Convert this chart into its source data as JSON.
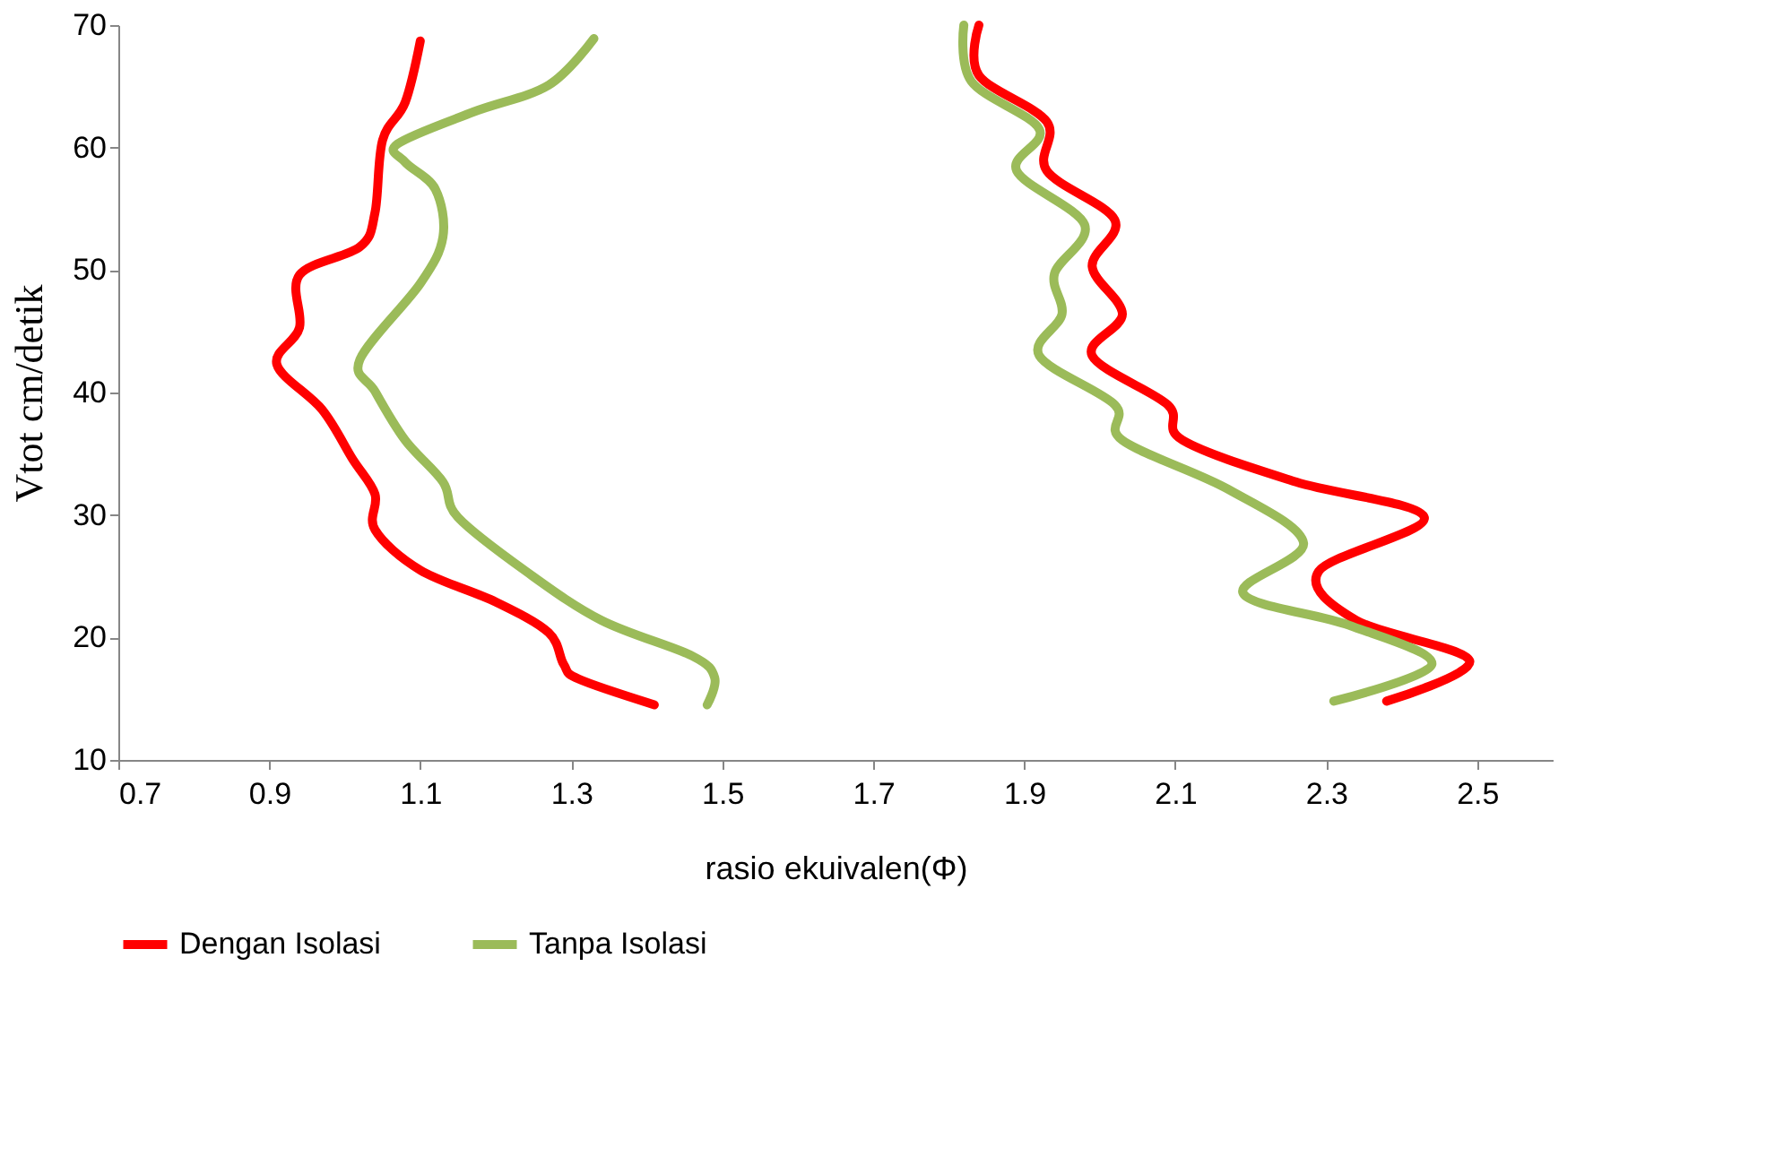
{
  "chart_data": {
    "type": "line",
    "xlabel": "rasio  ekuivalen(Φ)",
    "ylabel": "Vtot cm/detik",
    "xlim": [
      0.7,
      2.6
    ],
    "xticks": [
      0.7,
      0.9,
      1.1,
      1.3,
      1.5,
      1.7,
      1.9,
      2.1,
      2.3,
      2.5
    ],
    "ylim": [
      10,
      70
    ],
    "yticks": [
      10,
      20,
      30,
      40,
      50,
      60,
      70
    ],
    "grid": false,
    "legend": "bottom",
    "marker": "none",
    "line_style": "solid",
    "series": [
      {
        "name": "Dengan Isolasi",
        "color": "#ff0000",
        "x": [
          1.1,
          1.08,
          1.05,
          1.04,
          1.02,
          0.94,
          0.94,
          0.91,
          0.97,
          1.01,
          1.04,
          1.04,
          1.1,
          1.2,
          1.27,
          1.29,
          1.31,
          1.41,
          null,
          1.84,
          1.84,
          1.93,
          1.93,
          2.02,
          1.99,
          2.03,
          1.99,
          2.09,
          2.11,
          2.26,
          2.43,
          2.29,
          2.34,
          2.49,
          2.38
        ],
        "values": [
          68.7,
          63.7,
          60.6,
          54.7,
          51.9,
          49.6,
          45.3,
          42.3,
          38.6,
          34.6,
          31.7,
          28.8,
          25.5,
          22.9,
          20.4,
          17.8,
          16.6,
          14.5,
          null,
          70.0,
          65.9,
          62.1,
          58.1,
          54.1,
          50.3,
          46.4,
          43.0,
          39.0,
          36.1,
          32.7,
          29.8,
          25.4,
          21.4,
          18.1,
          14.8
        ]
      },
      {
        "name": "Tanpa Isolasi",
        "color": "#9bbb59",
        "x": [
          1.33,
          1.27,
          1.17,
          1.07,
          1.08,
          1.12,
          1.13,
          1.1,
          1.02,
          1.04,
          1.08,
          1.13,
          1.15,
          1.24,
          1.34,
          1.46,
          1.49,
          1.48,
          null,
          1.82,
          1.83,
          1.92,
          1.89,
          1.98,
          1.94,
          1.95,
          1.92,
          2.02,
          2.03,
          2.17,
          2.27,
          2.19,
          2.33,
          2.44,
          2.31
        ],
        "values": [
          68.9,
          65.1,
          62.9,
          60.3,
          58.8,
          56.6,
          52.7,
          48.9,
          42.7,
          40.1,
          36.1,
          32.7,
          29.8,
          25.4,
          21.4,
          18.5,
          16.7,
          14.5,
          null,
          70.0,
          65.4,
          61.5,
          58.1,
          53.7,
          49.7,
          46.4,
          43.0,
          39.0,
          36.1,
          32.1,
          27.7,
          23.6,
          21.0,
          17.8,
          14.8
        ]
      }
    ]
  }
}
